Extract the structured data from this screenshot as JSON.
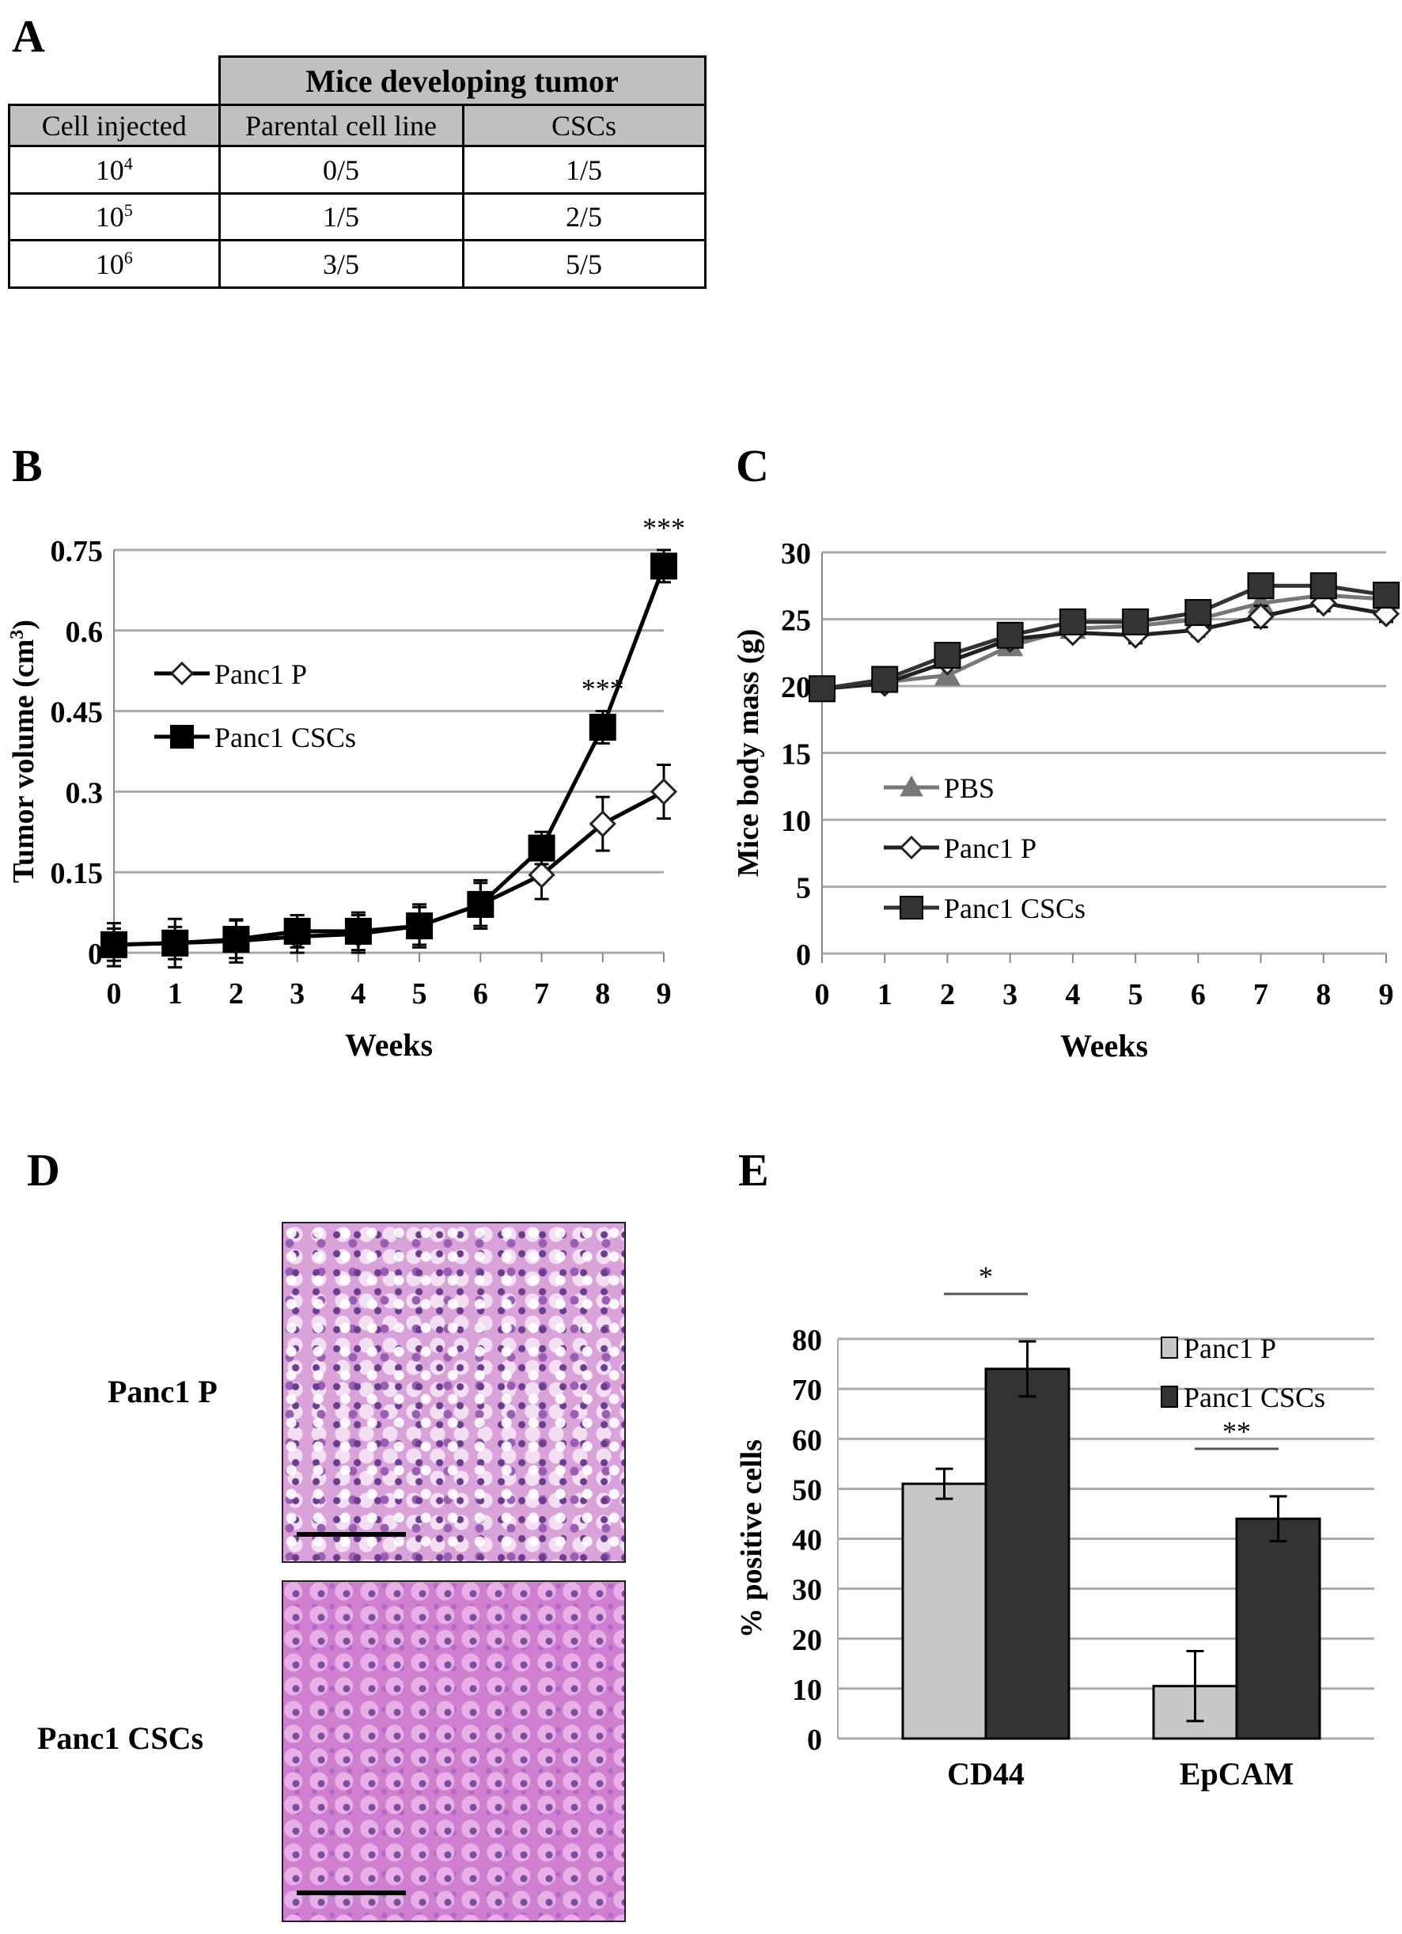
{
  "panels": {
    "A": "A",
    "B": "B",
    "C": "C",
    "D": "D",
    "E": "E"
  },
  "table": {
    "group_header": "Mice developing tumor",
    "columns": [
      "Cell injected",
      "Parental cell line",
      "CSCs"
    ],
    "rows": [
      {
        "base": "10",
        "exp": "4",
        "parental": "0/5",
        "cscs": "1/5"
      },
      {
        "base": "10",
        "exp": "5",
        "parental": "1/5",
        "cscs": "2/5"
      },
      {
        "base": "10",
        "exp": "6",
        "parental": "3/5",
        "cscs": "5/5"
      }
    ]
  },
  "histology": {
    "row_labels": [
      "Panc1 P",
      "Panc1 CSCs"
    ]
  },
  "chart_data": [
    {
      "type": "line",
      "title": "",
      "xlabel": "Weeks",
      "ylabel": "Tumor volume (cm³)",
      "ylabel_base": "Tumor volume (cm",
      "ylabel_sup": "3",
      "ylabel_end": ")",
      "x": [
        0,
        1,
        2,
        3,
        4,
        5,
        6,
        7,
        8,
        9
      ],
      "xticks": [
        "0",
        "1",
        "2",
        "3",
        "4",
        "5",
        "6",
        "7",
        "8",
        "9"
      ],
      "ylim": [
        0,
        0.75
      ],
      "yticks": [
        "0",
        "0.15",
        "0.3",
        "0.45",
        "0.6",
        "0.75"
      ],
      "ytick_values": [
        0,
        0.15,
        0.3,
        0.45,
        0.6,
        0.75
      ],
      "grid": true,
      "legend_position": "left",
      "series": [
        {
          "name": "Panc1 P",
          "marker": "diamond-open",
          "color": "#000000",
          "values": [
            0.015,
            0.018,
            0.022,
            0.03,
            0.035,
            0.05,
            0.09,
            0.145,
            0.24,
            0.3
          ],
          "errors": [
            0.04,
            0.045,
            0.04,
            0.03,
            0.035,
            0.04,
            0.045,
            0.045,
            0.05,
            0.05
          ]
        },
        {
          "name": "Panc1 CSCs",
          "marker": "square",
          "color": "#000000",
          "values": [
            0.015,
            0.018,
            0.025,
            0.04,
            0.04,
            0.05,
            0.09,
            0.195,
            0.42,
            0.72
          ],
          "errors": [
            0.03,
            0.03,
            0.035,
            0.03,
            0.035,
            0.035,
            0.04,
            0.03,
            0.03,
            0.03
          ]
        }
      ],
      "annotations": [
        {
          "x": 8,
          "text": "***"
        },
        {
          "x": 9,
          "text": "***"
        }
      ]
    },
    {
      "type": "line",
      "title": "",
      "xlabel": "Weeks",
      "ylabel": "Mice body mass (g)",
      "x": [
        0,
        1,
        2,
        3,
        4,
        5,
        6,
        7,
        8,
        9
      ],
      "xticks": [
        "0",
        "1",
        "2",
        "3",
        "4",
        "5",
        "6",
        "7",
        "8",
        "9"
      ],
      "ylim": [
        0,
        30
      ],
      "yticks": [
        "0",
        "5",
        "10",
        "15",
        "20",
        "25",
        "30"
      ],
      "ytick_values": [
        0,
        5,
        10,
        15,
        20,
        25,
        30
      ],
      "grid": true,
      "legend_position": "bottom-left",
      "series": [
        {
          "name": "PBS",
          "marker": "triangle",
          "color": "#777777",
          "values": [
            19.8,
            20.3,
            20.8,
            23.0,
            24.3,
            24.5,
            25.0,
            26.2,
            26.8,
            26.5
          ],
          "errors": [
            0,
            0,
            0,
            0,
            0,
            0,
            0,
            0,
            0,
            0
          ]
        },
        {
          "name": "Panc1 P",
          "marker": "diamond-open",
          "color": "#222222",
          "values": [
            19.8,
            20.2,
            21.8,
            23.5,
            24.0,
            23.8,
            24.2,
            25.2,
            26.2,
            25.4
          ],
          "errors": [
            0,
            0,
            0,
            0,
            0,
            0.6,
            0.5,
            0.8,
            0.6,
            0.6
          ]
        },
        {
          "name": "Panc1 CSCs",
          "marker": "square",
          "color": "#333333",
          "values": [
            19.8,
            20.5,
            22.3,
            23.8,
            24.8,
            24.8,
            25.5,
            27.5,
            27.5,
            26.8
          ],
          "errors": [
            0,
            0,
            0,
            0,
            0,
            0,
            0,
            0,
            0,
            0
          ]
        }
      ]
    },
    {
      "type": "bar",
      "title": "",
      "xlabel": "",
      "ylabel": "% positive cells",
      "categories": [
        "CD44",
        "EpCAM"
      ],
      "ylim": [
        0,
        80
      ],
      "yticks": [
        "0",
        "10",
        "20",
        "30",
        "40",
        "50",
        "60",
        "70",
        "80"
      ],
      "ytick_values": [
        0,
        10,
        20,
        30,
        40,
        50,
        60,
        70,
        80
      ],
      "grid": true,
      "legend_position": "top-right",
      "series": [
        {
          "name": "Panc1 P",
          "color": "#c8c8c8",
          "values": [
            51,
            10.5
          ],
          "errors": [
            3,
            7
          ]
        },
        {
          "name": "Panc1 CSCs",
          "color": "#333333",
          "values": [
            74,
            44
          ],
          "errors": [
            5.5,
            4.5
          ]
        }
      ],
      "annotations": [
        {
          "category": "CD44",
          "text": "*"
        },
        {
          "category": "EpCAM",
          "text": "**"
        }
      ]
    }
  ]
}
